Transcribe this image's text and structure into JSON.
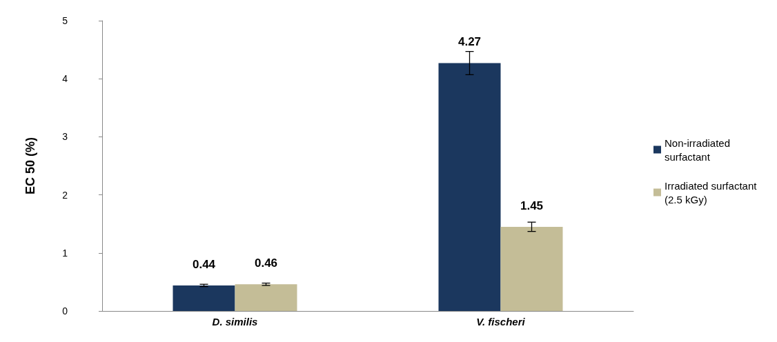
{
  "chart_data": {
    "type": "bar",
    "ylabel": "EC 50 (%)",
    "categories": [
      "D. similis",
      "V. fischeri"
    ],
    "series": [
      {
        "name": "Non-irradiated surfactant",
        "color": "#1b375e",
        "values": [
          0.44,
          4.27
        ],
        "errors": [
          0.02,
          0.2
        ]
      },
      {
        "name": "Irradiated surfactant (2.5 kGy)",
        "color": "#c4bd97",
        "values": [
          0.46,
          1.45
        ],
        "errors": [
          0.02,
          0.08
        ]
      }
    ],
    "ylim": [
      0,
      5
    ],
    "yticks": [
      0,
      1,
      2,
      3,
      4,
      5
    ],
    "grid": false,
    "legend": "right",
    "data_labels": true
  }
}
